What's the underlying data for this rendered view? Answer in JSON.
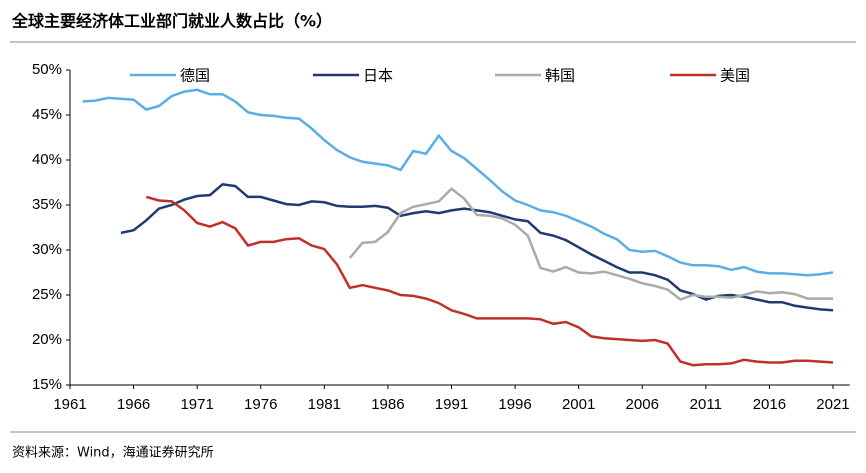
{
  "chart_data": {
    "type": "line",
    "title": "全球主要经济体工业部门就业人数占比（%）",
    "source": "资料来源：Wind，海通证券研究所",
    "x": [
      1962,
      1963,
      1964,
      1965,
      1966,
      1967,
      1968,
      1969,
      1970,
      1971,
      1972,
      1973,
      1974,
      1975,
      1976,
      1977,
      1978,
      1979,
      1980,
      1981,
      1982,
      1983,
      1984,
      1985,
      1986,
      1987,
      1988,
      1989,
      1990,
      1991,
      1992,
      1993,
      1994,
      1995,
      1996,
      1997,
      1998,
      1999,
      2000,
      2001,
      2002,
      2003,
      2004,
      2005,
      2006,
      2007,
      2008,
      2009,
      2010,
      2011,
      2012,
      2013,
      2014,
      2015,
      2016,
      2017,
      2018,
      2019,
      2020,
      2021
    ],
    "series": [
      {
        "name": "德国",
        "color": "#5aaee6",
        "values": [
          46.5,
          46.6,
          46.9,
          46.8,
          46.7,
          45.6,
          46.0,
          47.1,
          47.6,
          47.8,
          47.3,
          47.3,
          46.5,
          45.3,
          45.0,
          44.9,
          44.7,
          44.6,
          43.5,
          42.2,
          41.1,
          40.3,
          39.8,
          39.6,
          39.4,
          38.9,
          41.0,
          40.7,
          42.7,
          41.0,
          40.2,
          39.0,
          37.8,
          36.5,
          35.5,
          35.0,
          34.4,
          34.2,
          33.8,
          33.2,
          32.6,
          31.8,
          31.2,
          30.0,
          29.8,
          29.9,
          29.3,
          28.6,
          28.3,
          28.3,
          28.2,
          27.8,
          28.1,
          27.6,
          27.4,
          27.4,
          27.3,
          27.2,
          27.3,
          27.5
        ]
      },
      {
        "name": "日本",
        "color": "#1f3a6e",
        "values": [
          null,
          null,
          null,
          31.9,
          32.2,
          33.3,
          34.6,
          35.0,
          35.6,
          36.0,
          36.1,
          37.3,
          37.1,
          35.9,
          35.9,
          35.5,
          35.1,
          35.0,
          35.4,
          35.3,
          34.9,
          34.8,
          34.8,
          34.9,
          34.7,
          33.8,
          34.1,
          34.3,
          34.1,
          34.4,
          34.6,
          34.4,
          34.2,
          33.8,
          33.4,
          33.2,
          31.9,
          31.6,
          31.1,
          30.3,
          29.5,
          28.8,
          28.1,
          27.5,
          27.5,
          27.2,
          26.7,
          25.5,
          25.1,
          24.5,
          24.9,
          25.0,
          24.8,
          24.5,
          24.2,
          24.2,
          23.8,
          23.6,
          23.4,
          23.3
        ]
      },
      {
        "name": "韩国",
        "color": "#aaaaaa",
        "values": [
          null,
          null,
          null,
          null,
          null,
          null,
          null,
          null,
          null,
          null,
          null,
          null,
          null,
          null,
          null,
          null,
          null,
          null,
          null,
          null,
          null,
          29.1,
          30.8,
          30.9,
          32.0,
          34.1,
          34.8,
          35.1,
          35.4,
          36.8,
          35.7,
          33.9,
          33.8,
          33.5,
          32.8,
          31.6,
          28.0,
          27.6,
          28.1,
          27.5,
          27.4,
          27.6,
          27.2,
          26.8,
          26.3,
          26.0,
          25.6,
          24.5,
          25.0,
          24.8,
          24.8,
          24.7,
          25.0,
          25.4,
          25.2,
          25.3,
          25.1,
          24.6,
          24.6,
          24.6
        ]
      },
      {
        "name": "美国",
        "color": "#c0302b",
        "values": [
          null,
          null,
          null,
          null,
          null,
          35.9,
          35.5,
          35.4,
          34.4,
          33.0,
          32.6,
          33.1,
          32.4,
          30.5,
          30.9,
          30.9,
          31.2,
          31.3,
          30.5,
          30.1,
          28.4,
          25.8,
          26.1,
          25.8,
          25.5,
          25.0,
          24.9,
          24.6,
          24.1,
          23.3,
          22.9,
          22.4,
          22.4,
          22.4,
          22.4,
          22.4,
          22.3,
          21.8,
          22.0,
          21.4,
          20.4,
          20.2,
          20.1,
          20.0,
          19.9,
          20.0,
          19.6,
          17.6,
          17.2,
          17.3,
          17.3,
          17.4,
          17.8,
          17.6,
          17.5,
          17.5,
          17.7,
          17.7,
          17.6,
          17.5
        ]
      }
    ],
    "xlim": [
      1961,
      2022
    ],
    "xticks": [
      1961,
      1966,
      1971,
      1976,
      1981,
      1986,
      1991,
      1996,
      2001,
      2006,
      2011,
      2016,
      2021
    ],
    "ylim": [
      15,
      50
    ],
    "yticks": [
      {
        "value": 15,
        "label": "15%"
      },
      {
        "value": 20,
        "label": "20%"
      },
      {
        "value": 25,
        "label": "25%"
      },
      {
        "value": 30,
        "label": "30%"
      },
      {
        "value": 35,
        "label": "35%"
      },
      {
        "value": 40,
        "label": "40%"
      },
      {
        "value": 45,
        "label": "45%"
      },
      {
        "value": 50,
        "label": "50%"
      }
    ],
    "legend": "top",
    "grid": false
  }
}
